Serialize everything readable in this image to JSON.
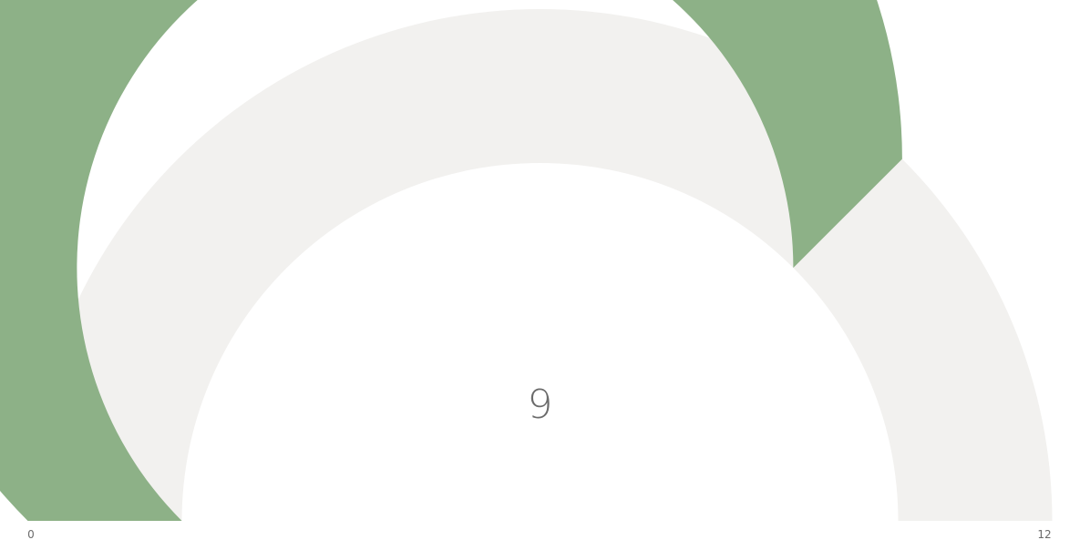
{
  "chart_data": {
    "type": "gauge",
    "value": 9,
    "min": 0,
    "max": 12,
    "value_label": "9",
    "min_label": "0",
    "max_label": "12",
    "fill_color": "#8db187",
    "track_color": "#f2f1ef",
    "text_color": "#6b6b6b"
  }
}
